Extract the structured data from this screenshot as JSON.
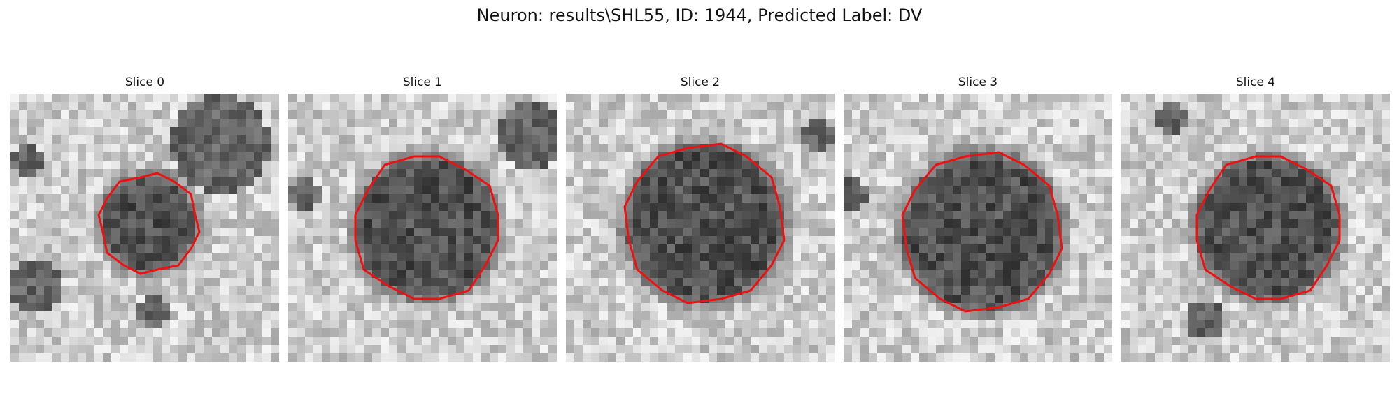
{
  "figure": {
    "title": "Neuron: results\\SHL55, ID: 1944, Predicted Label: DV"
  },
  "panels": [
    {
      "title": "Slice 0"
    },
    {
      "title": "Slice 1"
    },
    {
      "title": "Slice 2"
    },
    {
      "title": "Slice 3"
    },
    {
      "title": "Slice 4"
    }
  ],
  "colors": {
    "contour": "#ee1111",
    "colormap": "gray"
  }
}
